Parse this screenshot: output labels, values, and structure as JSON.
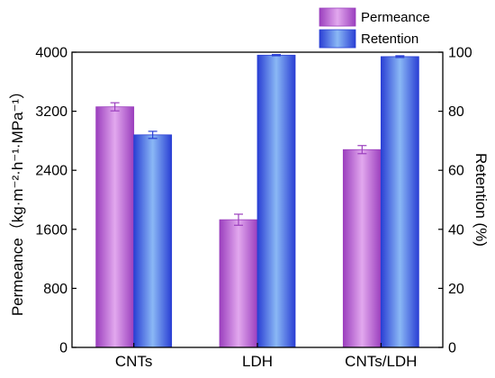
{
  "chart_data": {
    "type": "bar",
    "categories": [
      "CNTs",
      "LDH",
      "CNTs/LDH"
    ],
    "series": [
      {
        "name": "Permeance",
        "axis": "left",
        "values": [
          3260,
          1730,
          2680
        ],
        "errors": [
          55,
          75,
          55
        ],
        "color": "#9b3fbe",
        "color_light": "#e2a8ee"
      },
      {
        "name": "Retention",
        "axis": "right",
        "values": [
          72,
          99,
          98.5
        ],
        "errors": [
          1.2,
          0.2,
          0.3
        ],
        "color": "#2a3fd4",
        "color_light": "#8ab8f5"
      }
    ],
    "ylabel": "Permeance（kg·m⁻²·h⁻¹·MPa⁻¹）",
    "ylabel_right": "Retention (%)",
    "ylim": [
      0,
      4000
    ],
    "ylim_right": [
      0,
      100
    ],
    "yticks": [
      0,
      800,
      1600,
      2400,
      3200,
      4000
    ],
    "yticks_right": [
      0,
      20,
      40,
      60,
      80,
      100
    ],
    "grid": false,
    "legend_position": "top-right"
  }
}
